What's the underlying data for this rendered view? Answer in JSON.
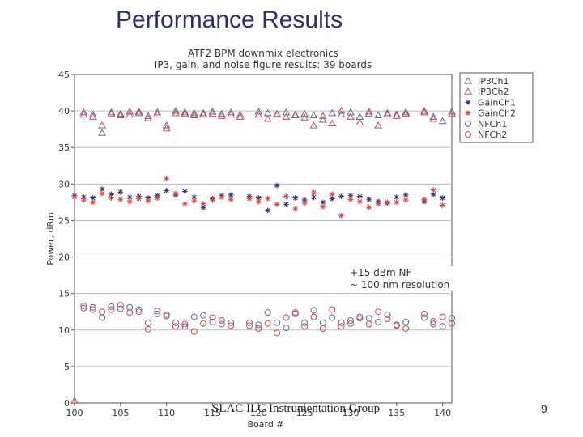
{
  "slide": {
    "title": "Performance Results",
    "footer": "SLAC ILC Instrumentation Group",
    "page_number": "9"
  },
  "chart_data": {
    "type": "scatter",
    "title": "ATF2 BPM downmix electronics",
    "subtitle": "IP3, gain, and noise figure results: 39 boards",
    "xlabel": "Board #",
    "ylabel": "Power, dBm",
    "xlim": [
      100,
      141
    ],
    "ylim": [
      0,
      45
    ],
    "xticks": [
      100,
      105,
      110,
      115,
      120,
      125,
      130,
      135,
      140
    ],
    "yticks": [
      0,
      5,
      10,
      15,
      20,
      25,
      30,
      35,
      40,
      45
    ],
    "grid": true,
    "legend_position": "top-right",
    "annotations": [
      "+15 dBm NF",
      "~ 100 nm resolution"
    ],
    "series": [
      {
        "name": "IP3Ch1",
        "marker": "triangle",
        "color": "#5566aa",
        "points": [
          [
            101,
            39.8
          ],
          [
            102,
            39.5
          ],
          [
            103,
            37
          ],
          [
            104,
            39.8
          ],
          [
            105,
            39.6
          ],
          [
            106,
            39.9
          ],
          [
            107,
            39.7
          ],
          [
            108,
            39.3
          ],
          [
            109,
            39.8
          ],
          [
            110,
            38
          ],
          [
            111,
            40
          ],
          [
            112,
            39.8
          ],
          [
            113,
            39.7
          ],
          [
            114,
            39.7
          ],
          [
            115,
            39.9
          ],
          [
            116,
            39.6
          ],
          [
            117,
            39.8
          ],
          [
            118,
            39.5
          ],
          [
            120,
            39.9
          ],
          [
            121,
            39.7
          ],
          [
            122,
            39.5
          ],
          [
            123,
            39.8
          ],
          [
            124,
            39.4
          ],
          [
            125,
            39.6
          ],
          [
            126,
            39.4
          ],
          [
            127,
            38.8
          ],
          [
            128,
            39.7
          ],
          [
            129,
            39.5
          ],
          [
            130,
            39.8
          ],
          [
            131,
            39.2
          ],
          [
            132,
            39.6
          ],
          [
            133,
            39.4
          ],
          [
            134,
            39.7
          ],
          [
            135,
            39.5
          ],
          [
            136,
            39.8
          ],
          [
            138,
            40
          ],
          [
            139,
            39.2
          ],
          [
            140,
            38.6
          ],
          [
            141,
            39.9
          ]
        ]
      },
      {
        "name": "IP3Ch2",
        "marker": "triangle",
        "color": "#dd4444",
        "points": [
          [
            100,
            0.3
          ],
          [
            101,
            39.5
          ],
          [
            102,
            39.2
          ],
          [
            103,
            38
          ],
          [
            104,
            39.6
          ],
          [
            105,
            39.4
          ],
          [
            106,
            39.5
          ],
          [
            107,
            39.9
          ],
          [
            108,
            39
          ],
          [
            109,
            39.5
          ],
          [
            110,
            37.6
          ],
          [
            111,
            39.7
          ],
          [
            112,
            39.6
          ],
          [
            113,
            39.4
          ],
          [
            114,
            39.5
          ],
          [
            115,
            39.6
          ],
          [
            116,
            39.3
          ],
          [
            117,
            39.5
          ],
          [
            118,
            39.2
          ],
          [
            120,
            39.5
          ],
          [
            121,
            38.9
          ],
          [
            122,
            39.6
          ],
          [
            123,
            39.2
          ],
          [
            124,
            39.5
          ],
          [
            125,
            39.1
          ],
          [
            126,
            38
          ],
          [
            127,
            39.3
          ],
          [
            128,
            38.3
          ],
          [
            129,
            40
          ],
          [
            130,
            39.2
          ],
          [
            131,
            38.4
          ],
          [
            132,
            39.9
          ],
          [
            133,
            38
          ],
          [
            134,
            39.5
          ],
          [
            135,
            39.3
          ],
          [
            136,
            39.6
          ],
          [
            138,
            39.8
          ],
          [
            139,
            38.9
          ],
          [
            141,
            39.6
          ]
        ]
      },
      {
        "name": "GainCh1",
        "marker": "star",
        "color": "#33337a",
        "points": [
          [
            100,
            28.4
          ],
          [
            101,
            28.2
          ],
          [
            102,
            28.1
          ],
          [
            103,
            29.3
          ],
          [
            104,
            28.6
          ],
          [
            105,
            28.9
          ],
          [
            106,
            28.2
          ],
          [
            107,
            28.3
          ],
          [
            108,
            28.1
          ],
          [
            109,
            28.4
          ],
          [
            110,
            29.1
          ],
          [
            111,
            28.5
          ],
          [
            112,
            29
          ],
          [
            113,
            28.2
          ],
          [
            114,
            26.8
          ],
          [
            115,
            28
          ],
          [
            116,
            28.4
          ],
          [
            117,
            28.5
          ],
          [
            119,
            28.3
          ],
          [
            120,
            28.1
          ],
          [
            121,
            26.4
          ],
          [
            122,
            29.8
          ],
          [
            123,
            27.2
          ],
          [
            124,
            28.1
          ],
          [
            125,
            27.8
          ],
          [
            126,
            28.2
          ],
          [
            127,
            27.5
          ],
          [
            128,
            28
          ],
          [
            129,
            28.3
          ],
          [
            130,
            28.4
          ],
          [
            131,
            28.3
          ],
          [
            132,
            27.9
          ],
          [
            133,
            27.6
          ],
          [
            134,
            27.4
          ],
          [
            135,
            28.2
          ],
          [
            136,
            28.5
          ],
          [
            138,
            27.6
          ],
          [
            139,
            28.6
          ],
          [
            140,
            28.1
          ]
        ]
      },
      {
        "name": "GainCh2",
        "marker": "star",
        "color": "#dd4444",
        "points": [
          [
            100,
            28.2
          ],
          [
            101,
            27.8
          ],
          [
            102,
            27.5
          ],
          [
            103,
            28.7
          ],
          [
            104,
            28.1
          ],
          [
            105,
            27.9
          ],
          [
            106,
            27.6
          ],
          [
            107,
            28
          ],
          [
            108,
            27.7
          ],
          [
            109,
            28.1
          ],
          [
            110,
            30.7
          ],
          [
            111,
            28.7
          ],
          [
            112,
            27.3
          ],
          [
            113,
            27.7
          ],
          [
            114,
            27.3
          ],
          [
            115,
            27.8
          ],
          [
            116,
            28.2
          ],
          [
            117,
            27.9
          ],
          [
            119,
            28
          ],
          [
            120,
            27.6
          ],
          [
            121,
            28
          ],
          [
            122,
            27.2
          ],
          [
            123,
            28.3
          ],
          [
            124,
            26.6
          ],
          [
            125,
            27.4
          ],
          [
            126,
            28.8
          ],
          [
            127,
            26.9
          ],
          [
            128,
            28.6
          ],
          [
            129,
            25.7
          ],
          [
            130,
            27.9
          ],
          [
            131,
            27.6
          ],
          [
            132,
            26.8
          ],
          [
            133,
            27.3
          ],
          [
            134,
            27.5
          ],
          [
            135,
            27.5
          ],
          [
            136,
            27.8
          ],
          [
            138,
            27.9
          ],
          [
            139,
            29.2
          ],
          [
            140,
            27.1
          ]
        ]
      },
      {
        "name": "NFCh1",
        "marker": "circle",
        "color": "#5566aa",
        "points": [
          [
            101,
            13
          ],
          [
            102,
            13.1
          ],
          [
            103,
            11.7
          ],
          [
            104,
            13.2
          ],
          [
            105,
            12.9
          ],
          [
            106,
            13.1
          ],
          [
            107,
            12.8
          ],
          [
            108,
            11
          ],
          [
            109,
            12.2
          ],
          [
            110,
            11.9
          ],
          [
            111,
            11
          ],
          [
            112,
            10.5
          ],
          [
            113,
            11.8
          ],
          [
            114,
            12
          ],
          [
            115,
            11.1
          ],
          [
            116,
            10.8
          ],
          [
            117,
            11
          ],
          [
            119,
            11
          ],
          [
            120,
            10.7
          ],
          [
            121,
            12.4
          ],
          [
            122,
            11
          ],
          [
            123,
            10.3
          ],
          [
            124,
            12.2
          ],
          [
            125,
            11
          ],
          [
            126,
            12.7
          ],
          [
            127,
            11
          ],
          [
            128,
            11.7
          ],
          [
            129,
            11
          ],
          [
            130,
            11.3
          ],
          [
            131,
            11.8
          ],
          [
            132,
            11.6
          ],
          [
            133,
            11.1
          ],
          [
            134,
            12.1
          ],
          [
            135,
            10.7
          ],
          [
            136,
            11.1
          ],
          [
            138,
            11.7
          ],
          [
            139,
            10.8
          ],
          [
            140,
            10.5
          ],
          [
            141,
            11.6
          ]
        ]
      },
      {
        "name": "NFCh2",
        "marker": "circle",
        "color": "#dd4444",
        "points": [
          [
            101,
            13.3
          ],
          [
            102,
            12.8
          ],
          [
            103,
            12.5
          ],
          [
            104,
            12.8
          ],
          [
            105,
            13.4
          ],
          [
            106,
            12.4
          ],
          [
            107,
            12.5
          ],
          [
            108,
            10.1
          ],
          [
            109,
            12.6
          ],
          [
            110,
            12.1
          ],
          [
            111,
            10.5
          ],
          [
            112,
            10.8
          ],
          [
            113,
            9.8
          ],
          [
            114,
            10.9
          ],
          [
            115,
            11.7
          ],
          [
            116,
            11.3
          ],
          [
            117,
            10.6
          ],
          [
            119,
            10.6
          ],
          [
            120,
            10.2
          ],
          [
            121,
            10.9
          ],
          [
            122,
            9.6
          ],
          [
            123,
            11.7
          ],
          [
            124,
            12.4
          ],
          [
            125,
            10.5
          ],
          [
            126,
            11.8
          ],
          [
            127,
            10.2
          ],
          [
            128,
            12.8
          ],
          [
            129,
            10.5
          ],
          [
            130,
            10.9
          ],
          [
            131,
            11.6
          ],
          [
            132,
            10.8
          ],
          [
            133,
            12.5
          ],
          [
            134,
            11.5
          ],
          [
            135,
            10.6
          ],
          [
            136,
            10.2
          ],
          [
            138,
            12.2
          ],
          [
            139,
            11.2
          ],
          [
            140,
            11.8
          ],
          [
            141,
            10.9
          ]
        ]
      }
    ]
  }
}
